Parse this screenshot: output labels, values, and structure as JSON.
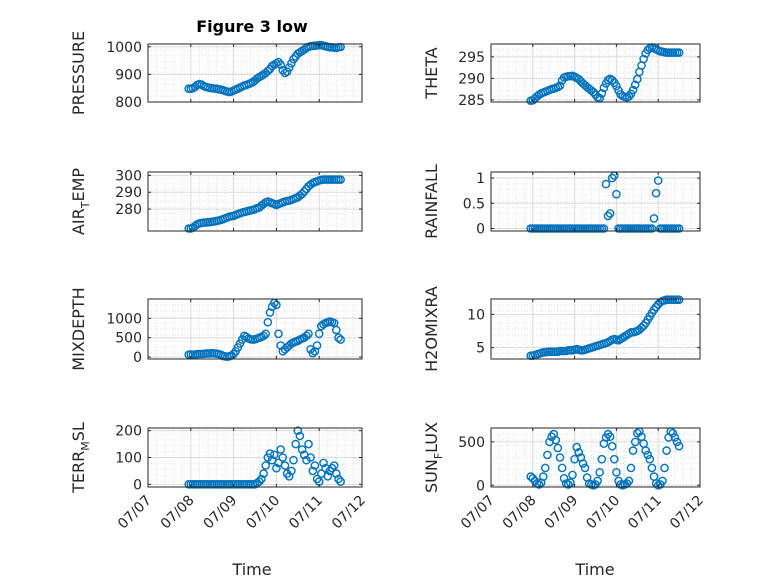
{
  "figure": {
    "title": "Figure 3 low",
    "xlabel": "Time",
    "marker_color": "#0072BD"
  },
  "chart_data": [
    {
      "type": "scatter",
      "ylabel_parts": [
        "PRESSURE"
      ],
      "ylim": [
        800,
        1010
      ],
      "yticks": [
        800,
        900,
        1000
      ],
      "xlim": [
        0,
        5
      ],
      "x": [
        0.95,
        1.0,
        1.05,
        1.1,
        1.15,
        1.2,
        1.25,
        1.3,
        1.35,
        1.4,
        1.45,
        1.5,
        1.55,
        1.6,
        1.65,
        1.7,
        1.75,
        1.8,
        1.85,
        1.9,
        1.95,
        2.0,
        2.05,
        2.1,
        2.15,
        2.2,
        2.25,
        2.3,
        2.35,
        2.4,
        2.45,
        2.5,
        2.55,
        2.6,
        2.65,
        2.7,
        2.75,
        2.8,
        2.85,
        2.9,
        2.95,
        3.0,
        3.05,
        3.1,
        3.15,
        3.2,
        3.25,
        3.3,
        3.35,
        3.4,
        3.45,
        3.5,
        3.55,
        3.6,
        3.65,
        3.7,
        3.75,
        3.8,
        3.85,
        3.9,
        3.95,
        4.0,
        4.05,
        4.1,
        4.15,
        4.2,
        4.25,
        4.3,
        4.35,
        4.4,
        4.45,
        4.5
      ],
      "y": [
        848,
        848,
        850,
        855,
        862,
        865,
        863,
        858,
        855,
        853,
        851,
        850,
        849,
        848,
        846,
        845,
        843,
        840,
        838,
        836,
        838,
        842,
        845,
        848,
        852,
        856,
        860,
        862,
        865,
        868,
        872,
        878,
        885,
        890,
        895,
        900,
        905,
        912,
        920,
        930,
        935,
        940,
        945,
        935,
        915,
        905,
        910,
        925,
        940,
        955,
        965,
        975,
        980,
        985,
        990,
        995,
        1000,
        1002,
        1003,
        1004,
        1005,
        1006,
        1006,
        1004,
        1002,
        1000,
        998,
        998,
        997,
        996,
        998,
        999
      ]
    },
    {
      "type": "scatter",
      "ylabel_parts": [
        "THETA"
      ],
      "ylim": [
        284.5,
        298
      ],
      "yticks": [
        285,
        290,
        295
      ],
      "xlim": [
        0,
        5
      ],
      "x": [
        0.95,
        1.0,
        1.05,
        1.1,
        1.15,
        1.2,
        1.25,
        1.3,
        1.35,
        1.4,
        1.45,
        1.5,
        1.55,
        1.6,
        1.65,
        1.7,
        1.75,
        1.8,
        1.85,
        1.9,
        1.95,
        2.0,
        2.05,
        2.1,
        2.15,
        2.2,
        2.25,
        2.3,
        2.35,
        2.4,
        2.45,
        2.5,
        2.55,
        2.6,
        2.65,
        2.7,
        2.75,
        2.8,
        2.85,
        2.9,
        2.95,
        3.0,
        3.05,
        3.1,
        3.15,
        3.2,
        3.25,
        3.3,
        3.35,
        3.4,
        3.45,
        3.5,
        3.55,
        3.6,
        3.65,
        3.7,
        3.75,
        3.8,
        3.85,
        3.9,
        3.95,
        4.0,
        4.05,
        4.1,
        4.15,
        4.2,
        4.25,
        4.3,
        4.35,
        4.4,
        4.45,
        4.5
      ],
      "y": [
        284.8,
        284.9,
        285.3,
        285.8,
        286.2,
        286.5,
        286.7,
        286.9,
        287.1,
        287.3,
        287.5,
        287.6,
        287.8,
        288.0,
        288.3,
        289.5,
        290.2,
        290.4,
        290.5,
        290.5,
        290.6,
        290.4,
        290.1,
        289.8,
        289.3,
        288.8,
        288.4,
        288.0,
        287.6,
        287.2,
        286.8,
        286.2,
        285.6,
        285.4,
        286.5,
        287.8,
        288.8,
        289.6,
        289.9,
        289.6,
        289.0,
        288.2,
        287.2,
        286.3,
        285.9,
        285.7,
        285.6,
        285.8,
        286.4,
        287.3,
        288.5,
        289.8,
        291.5,
        293.0,
        294.5,
        295.8,
        296.6,
        297.0,
        297.2,
        297.0,
        296.8,
        296.5,
        296.3,
        296.2,
        296.1,
        296.0,
        296.0,
        296.0,
        296.0,
        296.0,
        296.0,
        296.0
      ]
    },
    {
      "type": "scatter",
      "ylabel_parts": [
        "AIR",
        "T",
        "EMP"
      ],
      "ylim": [
        267,
        302
      ],
      "yticks": [
        280,
        290,
        300
      ],
      "xlim": [
        0,
        5
      ],
      "x": [
        0.95,
        1.0,
        1.05,
        1.1,
        1.15,
        1.2,
        1.25,
        1.3,
        1.35,
        1.4,
        1.45,
        1.5,
        1.55,
        1.6,
        1.65,
        1.7,
        1.75,
        1.8,
        1.85,
        1.9,
        1.95,
        2.0,
        2.05,
        2.1,
        2.15,
        2.2,
        2.25,
        2.3,
        2.35,
        2.4,
        2.45,
        2.5,
        2.55,
        2.6,
        2.65,
        2.7,
        2.75,
        2.8,
        2.85,
        2.9,
        2.95,
        3.0,
        3.05,
        3.1,
        3.15,
        3.2,
        3.25,
        3.3,
        3.35,
        3.4,
        3.45,
        3.5,
        3.55,
        3.6,
        3.65,
        3.7,
        3.75,
        3.8,
        3.85,
        3.9,
        3.95,
        4.0,
        4.05,
        4.1,
        4.15,
        4.2,
        4.25,
        4.3,
        4.35,
        4.4,
        4.45,
        4.5
      ],
      "y": [
        268.5,
        268.5,
        269,
        270,
        271,
        271.5,
        271.8,
        272,
        272,
        272.2,
        272.3,
        272.5,
        272.7,
        273,
        273.2,
        273.6,
        274,
        274.5,
        275,
        275.5,
        275.8,
        276,
        276.5,
        277,
        277.5,
        278,
        278.3,
        278.6,
        279,
        279.3,
        279.5,
        280,
        280.5,
        281,
        282,
        283,
        284,
        284.5,
        284,
        283.5,
        283,
        282.5,
        283,
        283.5,
        284,
        284.5,
        284.8,
        285,
        285.5,
        286,
        286.5,
        287,
        288,
        289,
        290.5,
        292,
        293.5,
        294.5,
        295.5,
        296,
        296.5,
        297,
        297.3,
        297.5,
        297.5,
        297.5,
        297.5,
        297.5,
        297.5,
        297.5,
        297.5,
        297.5
      ]
    },
    {
      "type": "scatter",
      "ylabel_parts": [
        "RAINFALL"
      ],
      "ylim": [
        -0.05,
        1.12
      ],
      "yticks": [
        0,
        0.5,
        1
      ],
      "ytick_labels": [
        "0",
        "0.5",
        "1"
      ],
      "xlim": [
        0,
        5
      ],
      "x": [
        0.95,
        1.0,
        1.05,
        1.1,
        1.15,
        1.2,
        1.25,
        1.3,
        1.35,
        1.4,
        1.45,
        1.5,
        1.55,
        1.6,
        1.65,
        1.7,
        1.75,
        1.8,
        1.85,
        1.9,
        1.95,
        2.0,
        2.05,
        2.1,
        2.15,
        2.2,
        2.25,
        2.3,
        2.35,
        2.4,
        2.45,
        2.5,
        2.55,
        2.6,
        2.65,
        2.7,
        2.75,
        2.8,
        2.85,
        2.9,
        2.95,
        3.0,
        3.05,
        3.1,
        3.15,
        3.2,
        3.25,
        3.3,
        3.35,
        3.4,
        3.45,
        3.5,
        3.55,
        3.6,
        3.65,
        3.7,
        3.75,
        3.8,
        3.85,
        3.9,
        3.95,
        4.0,
        4.05,
        4.1,
        4.15,
        4.2,
        4.25,
        4.3,
        4.35,
        4.4,
        4.45,
        4.5
      ],
      "y": [
        0,
        0,
        0,
        0,
        0,
        0,
        0,
        0,
        0,
        0,
        0,
        0,
        0,
        0,
        0,
        0,
        0,
        0,
        0,
        0,
        0,
        0,
        0,
        0,
        0,
        0,
        0,
        0,
        0,
        0,
        0,
        0,
        0,
        0,
        0,
        0,
        0.88,
        0.25,
        0.3,
        1.0,
        1.05,
        0.68,
        0,
        0,
        0,
        0,
        0,
        0,
        0,
        0,
        0,
        0,
        0,
        0,
        0,
        0,
        0,
        0,
        0,
        0.2,
        0.7,
        0.95,
        0,
        0,
        0,
        0,
        0,
        0,
        0,
        0,
        0,
        0
      ]
    },
    {
      "type": "scatter",
      "ylabel_parts": [
        "MIXDEPTH"
      ],
      "ylim": [
        -50,
        1500
      ],
      "yticks": [
        0,
        500,
        1000
      ],
      "xlim": [
        0,
        5
      ],
      "x": [
        0.95,
        1.0,
        1.05,
        1.1,
        1.15,
        1.2,
        1.25,
        1.3,
        1.35,
        1.4,
        1.45,
        1.5,
        1.55,
        1.6,
        1.65,
        1.7,
        1.75,
        1.8,
        1.85,
        1.9,
        1.95,
        2.0,
        2.05,
        2.1,
        2.15,
        2.2,
        2.25,
        2.3,
        2.35,
        2.4,
        2.45,
        2.5,
        2.55,
        2.6,
        2.65,
        2.7,
        2.75,
        2.8,
        2.85,
        2.9,
        2.95,
        3.0,
        3.05,
        3.1,
        3.15,
        3.2,
        3.25,
        3.3,
        3.35,
        3.4,
        3.45,
        3.5,
        3.55,
        3.6,
        3.65,
        3.7,
        3.75,
        3.8,
        3.85,
        3.9,
        3.95,
        4.0,
        4.05,
        4.1,
        4.15,
        4.2,
        4.25,
        4.3,
        4.35,
        4.4,
        4.45,
        4.5
      ],
      "y": [
        60,
        70,
        60,
        70,
        75,
        80,
        80,
        85,
        90,
        95,
        95,
        100,
        95,
        90,
        80,
        60,
        30,
        20,
        10,
        20,
        40,
        80,
        150,
        250,
        350,
        450,
        550,
        520,
        480,
        460,
        450,
        460,
        480,
        500,
        520,
        550,
        600,
        900,
        1150,
        1300,
        1400,
        1350,
        600,
        300,
        150,
        200,
        250,
        300,
        350,
        380,
        400,
        420,
        450,
        480,
        500,
        550,
        600,
        200,
        100,
        150,
        300,
        600,
        800,
        850,
        880,
        900,
        920,
        900,
        880,
        700,
        500,
        450
      ]
    },
    {
      "type": "scatter",
      "ylabel_parts": [
        "H2OMIXRA"
      ],
      "ylim": [
        3.3,
        12.3
      ],
      "yticks": [
        5,
        10
      ],
      "xlim": [
        0,
        5
      ],
      "x": [
        0.95,
        1.0,
        1.05,
        1.1,
        1.15,
        1.2,
        1.25,
        1.3,
        1.35,
        1.4,
        1.45,
        1.5,
        1.55,
        1.6,
        1.65,
        1.7,
        1.75,
        1.8,
        1.85,
        1.9,
        1.95,
        2.0,
        2.05,
        2.1,
        2.15,
        2.2,
        2.25,
        2.3,
        2.35,
        2.4,
        2.45,
        2.5,
        2.55,
        2.6,
        2.65,
        2.7,
        2.75,
        2.8,
        2.85,
        2.9,
        2.95,
        3.0,
        3.05,
        3.1,
        3.15,
        3.2,
        3.25,
        3.3,
        3.35,
        3.4,
        3.45,
        3.5,
        3.55,
        3.6,
        3.65,
        3.7,
        3.75,
        3.8,
        3.85,
        3.9,
        3.95,
        4.0,
        4.05,
        4.1,
        4.15,
        4.2,
        4.25,
        4.3,
        4.35,
        4.4,
        4.45,
        4.5
      ],
      "y": [
        3.8,
        3.8,
        3.9,
        4.0,
        4.1,
        4.2,
        4.3,
        4.3,
        4.4,
        4.4,
        4.4,
        4.4,
        4.4,
        4.4,
        4.5,
        4.5,
        4.5,
        4.5,
        4.6,
        4.6,
        4.6,
        4.7,
        4.8,
        4.7,
        4.6,
        4.6,
        4.7,
        4.8,
        4.9,
        5.0,
        5.1,
        5.2,
        5.3,
        5.4,
        5.5,
        5.6,
        5.7,
        5.8,
        6.0,
        6.2,
        6.3,
        6.2,
        6.1,
        6.3,
        6.5,
        6.7,
        6.9,
        7.1,
        7.3,
        7.3,
        7.4,
        7.5,
        7.7,
        8.0,
        8.3,
        8.7,
        9.2,
        9.7,
        10.2,
        10.7,
        11.1,
        11.5,
        11.8,
        12.0,
        12.1,
        12.2,
        12.2,
        12.2,
        12.2,
        12.2,
        12.2,
        12.2
      ]
    },
    {
      "type": "scatter",
      "ylabel_parts": [
        "TERR",
        "M",
        "SL"
      ],
      "ylim": [
        -10,
        210
      ],
      "yticks": [
        0,
        100,
        200
      ],
      "xlim": [
        0,
        5
      ],
      "x_tick_labels": [
        "07/07",
        "07/08",
        "07/09",
        "07/10",
        "07/11",
        "07/12"
      ],
      "x": [
        0.95,
        1.0,
        1.05,
        1.1,
        1.15,
        1.2,
        1.25,
        1.3,
        1.35,
        1.4,
        1.45,
        1.5,
        1.55,
        1.6,
        1.65,
        1.7,
        1.75,
        1.8,
        1.85,
        1.9,
        1.95,
        2.0,
        2.05,
        2.1,
        2.15,
        2.2,
        2.25,
        2.3,
        2.35,
        2.4,
        2.45,
        2.5,
        2.55,
        2.6,
        2.65,
        2.7,
        2.75,
        2.8,
        2.85,
        2.9,
        2.95,
        3.0,
        3.05,
        3.1,
        3.15,
        3.2,
        3.25,
        3.3,
        3.35,
        3.4,
        3.45,
        3.5,
        3.55,
        3.6,
        3.65,
        3.7,
        3.75,
        3.8,
        3.85,
        3.9,
        3.95,
        4.0,
        4.05,
        4.1,
        4.15,
        4.2,
        4.25,
        4.3,
        4.35,
        4.4,
        4.45,
        4.5
      ],
      "y": [
        0,
        0,
        0,
        0,
        0,
        0,
        0,
        0,
        0,
        0,
        0,
        0,
        0,
        0,
        0,
        0,
        0,
        0,
        0,
        0,
        0,
        0,
        0,
        0,
        0,
        0,
        0,
        0,
        0,
        0,
        0,
        0,
        5,
        10,
        20,
        40,
        70,
        100,
        115,
        90,
        110,
        60,
        80,
        130,
        100,
        70,
        40,
        30,
        50,
        90,
        150,
        200,
        180,
        130,
        110,
        90,
        150,
        100,
        50,
        70,
        20,
        10,
        40,
        80,
        60,
        30,
        50,
        60,
        70,
        40,
        20,
        10
      ]
    },
    {
      "type": "scatter",
      "ylabel_parts": [
        "SUN",
        "F",
        "LUX"
      ],
      "ylim": [
        -20,
        660
      ],
      "yticks": [
        0,
        500
      ],
      "xlim": [
        0,
        5
      ],
      "x_tick_labels": [
        "07/07",
        "07/08",
        "07/09",
        "07/10",
        "07/11",
        "07/12"
      ],
      "x": [
        0.95,
        1.0,
        1.05,
        1.1,
        1.15,
        1.2,
        1.25,
        1.3,
        1.35,
        1.4,
        1.45,
        1.5,
        1.55,
        1.6,
        1.65,
        1.7,
        1.75,
        1.8,
        1.85,
        1.9,
        1.95,
        2.0,
        2.05,
        2.1,
        2.15,
        2.2,
        2.25,
        2.3,
        2.35,
        2.4,
        2.45,
        2.5,
        2.55,
        2.6,
        2.65,
        2.7,
        2.75,
        2.8,
        2.85,
        2.9,
        2.95,
        3.0,
        3.05,
        3.1,
        3.15,
        3.2,
        3.25,
        3.3,
        3.35,
        3.4,
        3.45,
        3.5,
        3.55,
        3.6,
        3.65,
        3.7,
        3.75,
        3.8,
        3.85,
        3.9,
        3.95,
        4.0,
        4.05,
        4.1,
        4.15,
        4.2,
        4.25,
        4.3,
        4.35,
        4.4,
        4.45,
        4.5
      ],
      "y": [
        100,
        80,
        50,
        20,
        10,
        30,
        100,
        200,
        350,
        500,
        560,
        590,
        520,
        430,
        320,
        200,
        80,
        20,
        10,
        30,
        120,
        300,
        440,
        380,
        320,
        250,
        200,
        90,
        20,
        10,
        0,
        10,
        50,
        150,
        300,
        480,
        550,
        590,
        560,
        450,
        300,
        150,
        50,
        10,
        0,
        10,
        20,
        50,
        200,
        400,
        500,
        600,
        620,
        560,
        480,
        400,
        350,
        300,
        200,
        100,
        20,
        0,
        10,
        50,
        200,
        400,
        550,
        620,
        600,
        550,
        500,
        450
      ]
    }
  ]
}
